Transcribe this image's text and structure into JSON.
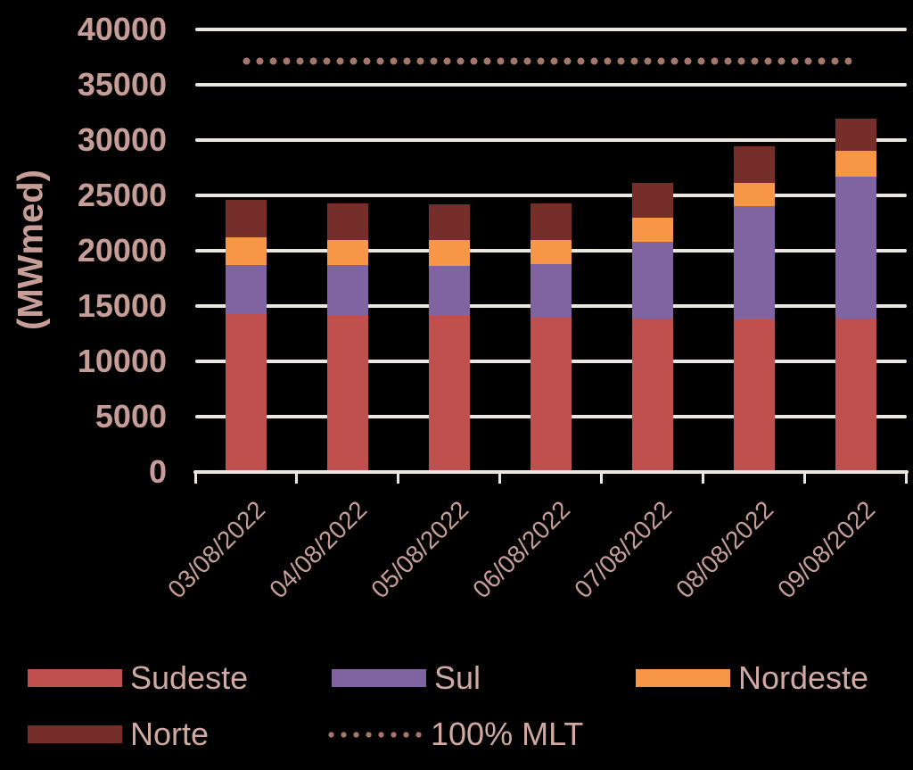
{
  "colors": {
    "background": "#000000",
    "grid": "#ece6e1",
    "axis_text": "#c69e97",
    "legend_text": "#cfa9a2"
  },
  "chart_data": {
    "type": "bar",
    "stacked": true,
    "title": "",
    "xlabel": "",
    "ylabel": "(MWmed)",
    "ylim": [
      0,
      40000
    ],
    "ytick_step": 5000,
    "ytick_labels": [
      "0",
      "5000",
      "10000",
      "15000",
      "20000",
      "25000",
      "30000",
      "35000",
      "40000"
    ],
    "grid": true,
    "legend_position": "bottom",
    "categories": [
      "03/08/2022",
      "04/08/2022",
      "05/08/2022",
      "06/08/2022",
      "07/08/2022",
      "08/08/2022",
      "09/08/2022"
    ],
    "series": [
      {
        "name": "Sudeste",
        "color": "#c0504d",
        "values": [
          14300,
          14100,
          14100,
          14000,
          13900,
          13800,
          13900
        ]
      },
      {
        "name": "Sul",
        "color": "#8064a2",
        "values": [
          4400,
          4600,
          4500,
          4800,
          6900,
          10200,
          12800
        ]
      },
      {
        "name": "Nordeste",
        "color": "#f79646",
        "values": [
          2500,
          2300,
          2400,
          2200,
          2200,
          2100,
          2300
        ]
      },
      {
        "name": "Norte",
        "color": "#762e2a",
        "values": [
          3400,
          3300,
          3200,
          3300,
          3100,
          3300,
          2900
        ]
      }
    ],
    "totals": [
      24600,
      24300,
      24200,
      24300,
      26100,
      29400,
      31900
    ],
    "reference_line": {
      "name": "100% MLT",
      "value": 37100,
      "style": "dotted",
      "color": "#a5766c"
    }
  }
}
